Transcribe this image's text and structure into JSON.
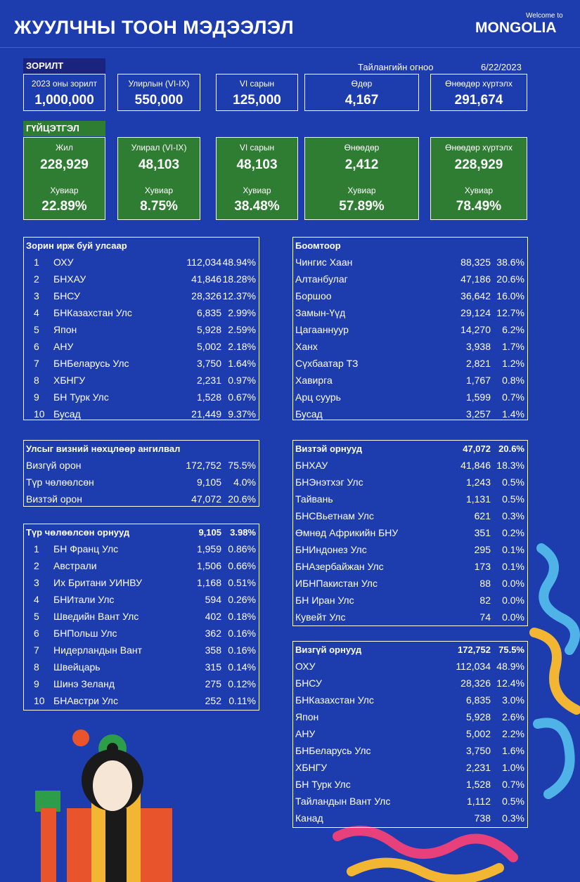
{
  "header": {
    "title": "ЖУУЛЧНЫ ТООН МЭДЭЭЛЭЛ",
    "logo_small": "Welcome to",
    "logo": "MONGOLIA"
  },
  "goal": {
    "label": "ЗОРИЛТ",
    "report_date_label": "Тайлангийн огноо",
    "report_date": "6/22/2023",
    "cards": [
      {
        "label": "2023 оны зорилт",
        "value": "1,000,000"
      },
      {
        "label": "Улирлын (VI-IX)",
        "value": "550,000"
      },
      {
        "label": "VI сарын",
        "value": "125,000"
      },
      {
        "label": "Өдөр",
        "value": "4,167"
      },
      {
        "label": "Өнөөдөр хүртэлх",
        "value": "291,674"
      }
    ]
  },
  "progress": {
    "label": "ГҮЙЦЭТГЭЛ",
    "cards": [
      {
        "label": "Жил",
        "value": "228,929",
        "pct_label": "Хувиар",
        "pct": "22.89%"
      },
      {
        "label": "Улирал (VI-IX)",
        "value": "48,103",
        "pct_label": "Хувиар",
        "pct": "8.75%"
      },
      {
        "label": "VI сарын",
        "value": "48,103",
        "pct_label": "Хувиар",
        "pct": "38.48%"
      },
      {
        "label": "Өнөөдөр",
        "value": "2,412",
        "pct_label": "Хувиар",
        "pct": "57.89%"
      },
      {
        "label": "Өнөөдөр хүртэлх",
        "value": "228,929",
        "pct_label": "Хувиар",
        "pct": "78.49%"
      }
    ]
  },
  "tables": [
    {
      "title": "Зорин ирж буй улсаар",
      "rows": [
        [
          "1",
          "ОХУ",
          "112,034",
          "48.94%"
        ],
        [
          "2",
          "БНХАУ",
          "41,846",
          "18.28%"
        ],
        [
          "3",
          "БНСУ",
          "28,326",
          "12.37%"
        ],
        [
          "4",
          "БНКазахстан Улс",
          "6,835",
          "2.99%"
        ],
        [
          "5",
          "Япон",
          "5,928",
          "2.59%"
        ],
        [
          "6",
          "АНУ",
          "5,002",
          "2.18%"
        ],
        [
          "7",
          "БНБеларусь Улс",
          "3,750",
          "1.64%"
        ],
        [
          "8",
          "ХБНГУ",
          "2,231",
          "0.97%"
        ],
        [
          "9",
          "БН Турк Улс",
          "1,528",
          "0.67%"
        ],
        [
          "10",
          "Бусад",
          "21,449",
          "9.37%"
        ]
      ]
    },
    {
      "title": "Улсыг визний нөхцлөөр ангилвал",
      "rows": [
        [
          "Визгүй орон",
          "172,752",
          "75.5%"
        ],
        [
          "Түр чөлөөлсөн",
          "9,105",
          "4.0%"
        ],
        [
          "Визтэй орон",
          "47,072",
          "20.6%"
        ]
      ]
    },
    {
      "title": "Түр чөлөөлсөн орнууд",
      "total": "9,105",
      "total_pct": "3.98%",
      "rows": [
        [
          "1",
          "БН Франц Улс",
          "1,959",
          "0.86%"
        ],
        [
          "2",
          "Австрали",
          "1,506",
          "0.66%"
        ],
        [
          "3",
          "Их Британи УИНВУ",
          "1,168",
          "0.51%"
        ],
        [
          "4",
          "БНИтали Улс",
          "594",
          "0.26%"
        ],
        [
          "5",
          "Шведийн Вант Улс",
          "402",
          "0.18%"
        ],
        [
          "6",
          "БНПольш Улс",
          "362",
          "0.16%"
        ],
        [
          "7",
          "Нидерландын Вант",
          "358",
          "0.16%"
        ],
        [
          "8",
          "Швейцарь",
          "315",
          "0.14%"
        ],
        [
          "9",
          "Шинэ Зеланд",
          "275",
          "0.12%"
        ],
        [
          "10",
          "БНАвстри Улс",
          "252",
          "0.11%"
        ]
      ]
    },
    {
      "title": "Боомтоор",
      "rows": [
        [
          "Чингис Хаан",
          "88,325",
          "38.6%"
        ],
        [
          "Алтанбулаг",
          "47,186",
          "20.6%"
        ],
        [
          "Боршоо",
          "36,642",
          "16.0%"
        ],
        [
          "Замын-Үүд",
          "29,124",
          "12.7%"
        ],
        [
          "Цагааннуур",
          "14,270",
          "6.2%"
        ],
        [
          "Ханх",
          "3,938",
          "1.7%"
        ],
        [
          "Сүхбаатар ТЗ",
          "2,821",
          "1.2%"
        ],
        [
          "Хавирга",
          "1,767",
          "0.8%"
        ],
        [
          "Арц суурь",
          "1,599",
          "0.7%"
        ],
        [
          "Бусад",
          "3,257",
          "1.4%"
        ]
      ]
    },
    {
      "title": "Визтэй орнууд",
      "total": "47,072",
      "total_pct": "20.6%",
      "rows": [
        [
          "БНХАУ",
          "41,846",
          "18.3%"
        ],
        [
          "БНЭнэтхэг Улс",
          "1,243",
          "0.5%"
        ],
        [
          "Тайвань",
          "1,131",
          "0.5%"
        ],
        [
          "БНСВьетнам Улс",
          "621",
          "0.3%"
        ],
        [
          "Өмнөд Африкийн БНУ",
          "351",
          "0.2%"
        ],
        [
          "БНИндонез Улс",
          "295",
          "0.1%"
        ],
        [
          "БНАзербайжан Улс",
          "173",
          "0.1%"
        ],
        [
          "ИБНПакистан Улс",
          "88",
          "0.0%"
        ],
        [
          "БН Иран Улс",
          "82",
          "0.0%"
        ],
        [
          "Кувейт Улс",
          "74",
          "0.0%"
        ]
      ]
    },
    {
      "title": "Визгүй орнууд",
      "total": "172,752",
      "total_pct": "75.5%",
      "rows": [
        [
          "ОХУ",
          "112,034",
          "48.9%"
        ],
        [
          "БНСУ",
          "28,326",
          "12.4%"
        ],
        [
          "БНКазахстан Улс",
          "6,835",
          "3.0%"
        ],
        [
          "Япон",
          "5,928",
          "2.6%"
        ],
        [
          "АНУ",
          "5,002",
          "2.2%"
        ],
        [
          "БНБеларусь Улс",
          "3,750",
          "1.6%"
        ],
        [
          "ХБНГУ",
          "2,231",
          "1.0%"
        ],
        [
          "БН Турк Улс",
          "1,528",
          "0.7%"
        ],
        [
          "Тайландын Вант Улс",
          "1,112",
          "0.5%"
        ],
        [
          "Канад",
          "738",
          "0.3%"
        ]
      ]
    }
  ]
}
